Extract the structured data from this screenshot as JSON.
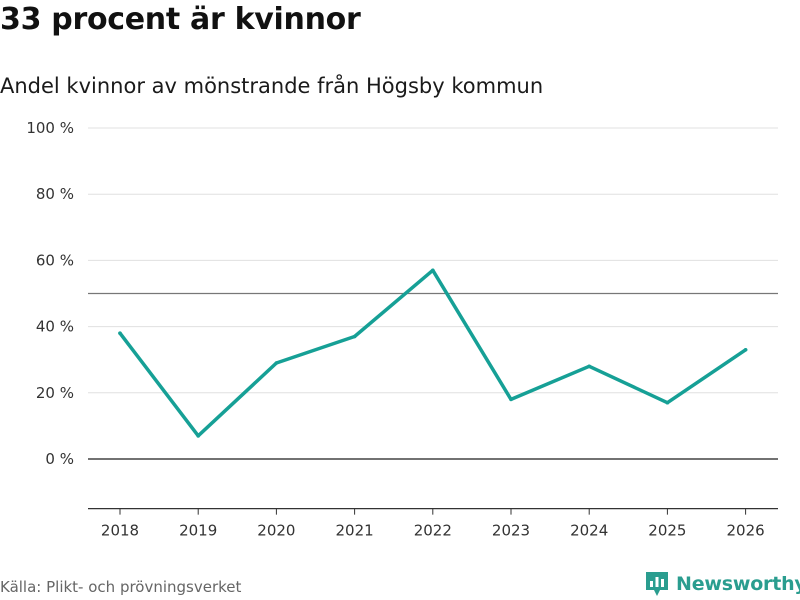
{
  "title": "33 procent är kvinnor",
  "subtitle": "Andel kvinnor av mönstrande från Högsby kommun",
  "source": "Källa: Plikt- och prövningsverket",
  "brand": {
    "name": "Newsworthy",
    "color": "#2a9d8f"
  },
  "colors": {
    "line": "#16a096",
    "grid": "#e0e0e0",
    "reference": "#777777",
    "zero": "#444444"
  },
  "chart_data": {
    "type": "line",
    "title": "33 procent är kvinnor",
    "subtitle": "Andel kvinnor av mönstrande från Högsby kommun",
    "xlabel": "",
    "ylabel": "",
    "categories": [
      "2018",
      "2019",
      "2020",
      "2021",
      "2022",
      "2023",
      "2024",
      "2025",
      "2026"
    ],
    "series": [
      {
        "name": "Andel kvinnor",
        "values": [
          38,
          7,
          29,
          37,
          57,
          18,
          28,
          17,
          33
        ]
      }
    ],
    "y_ticks": [
      0,
      20,
      40,
      60,
      80,
      100
    ],
    "y_tick_labels": [
      "0 %",
      "20 %",
      "40 %",
      "60 %",
      "80 %",
      "100 %"
    ],
    "ylim": [
      -15,
      100
    ],
    "reference_line": 50,
    "grid": true
  }
}
